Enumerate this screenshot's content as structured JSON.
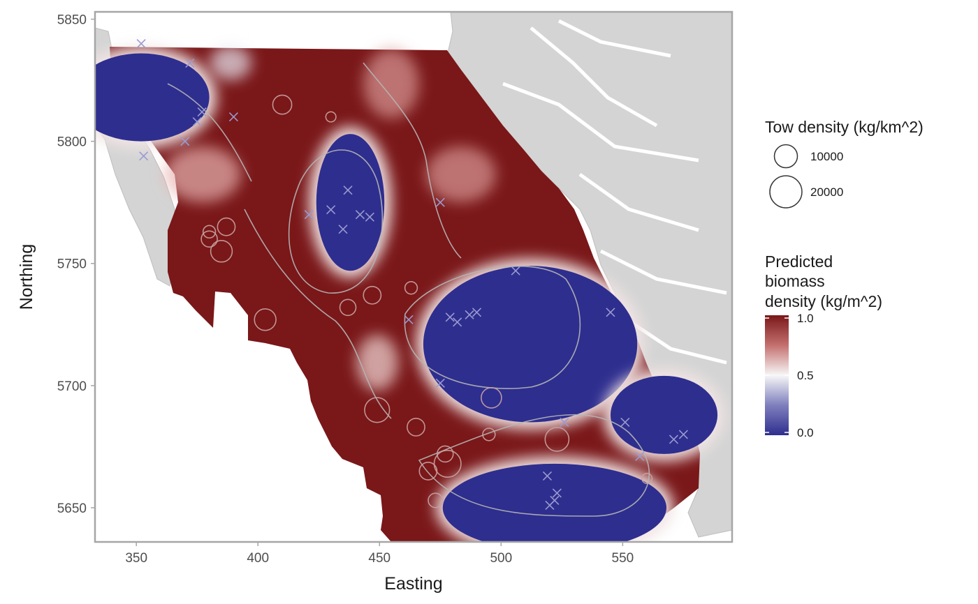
{
  "chart_data": {
    "type": "heatmap",
    "xlabel": "Easting",
    "ylabel": "Northing",
    "xlim": [
      333,
      595
    ],
    "ylim": [
      5636,
      5853
    ],
    "x_ticks": [
      350,
      400,
      450,
      500,
      550
    ],
    "y_ticks": [
      5650,
      5700,
      5750,
      5800,
      5850
    ],
    "grid": false,
    "legend_placement": "right",
    "size_legend": {
      "title": "Tow density (kg/km^2)",
      "entries": [
        10000,
        20000
      ]
    },
    "color_legend": {
      "title_lines": [
        "Predicted",
        "biomass",
        "density (kg/m^2)"
      ],
      "ticks": [
        "1.0",
        "0.5",
        "0.0"
      ],
      "tick_values": [
        1.0,
        0.5,
        0.0
      ],
      "colors": {
        "high": "#7a1719",
        "mid": "#f7f7f7",
        "low": "#2e2e8f"
      }
    },
    "low_density_zones": [
      {
        "x": 352,
        "y": 5818,
        "rx": 28,
        "ry": 18
      },
      {
        "x": 438,
        "y": 5775,
        "rx": 14,
        "ry": 28
      },
      {
        "x": 512,
        "y": 5717,
        "rx": 44,
        "ry": 32
      },
      {
        "x": 522,
        "y": 5650,
        "rx": 46,
        "ry": 18
      },
      {
        "x": 567,
        "y": 5688,
        "rx": 22,
        "ry": 16
      }
    ],
    "tows_positive": [
      {
        "x": 410,
        "y": 5815,
        "d": 7000
      },
      {
        "x": 387,
        "y": 5765,
        "d": 6000
      },
      {
        "x": 385,
        "y": 5755,
        "d": 9000
      },
      {
        "x": 380,
        "y": 5760,
        "d": 5000
      },
      {
        "x": 403,
        "y": 5727,
        "d": 9000
      },
      {
        "x": 437,
        "y": 5732,
        "d": 5000
      },
      {
        "x": 447,
        "y": 5737,
        "d": 6000
      },
      {
        "x": 449,
        "y": 5690,
        "d": 12000
      },
      {
        "x": 465,
        "y": 5683,
        "d": 6000
      },
      {
        "x": 470,
        "y": 5665,
        "d": 6000
      },
      {
        "x": 478,
        "y": 5668,
        "d": 14000
      },
      {
        "x": 477,
        "y": 5672,
        "d": 5000
      },
      {
        "x": 496,
        "y": 5695,
        "d": 8000
      },
      {
        "x": 523,
        "y": 5678,
        "d": 11000
      },
      {
        "x": 473,
        "y": 5653,
        "d": 4000
      },
      {
        "x": 380,
        "y": 5763,
        "d": 3000
      },
      {
        "x": 430,
        "y": 5810,
        "d": 2000
      },
      {
        "x": 463,
        "y": 5740,
        "d": 3000
      },
      {
        "x": 495,
        "y": 5680,
        "d": 3000
      },
      {
        "x": 560,
        "y": 5662,
        "d": 2000
      }
    ],
    "tows_zero": [
      {
        "x": 352,
        "y": 5840
      },
      {
        "x": 372,
        "y": 5832
      },
      {
        "x": 375,
        "y": 5808
      },
      {
        "x": 377,
        "y": 5812
      },
      {
        "x": 370,
        "y": 5800
      },
      {
        "x": 353,
        "y": 5794
      },
      {
        "x": 390,
        "y": 5810
      },
      {
        "x": 437,
        "y": 5780
      },
      {
        "x": 442,
        "y": 5770
      },
      {
        "x": 435,
        "y": 5764
      },
      {
        "x": 430,
        "y": 5772
      },
      {
        "x": 421,
        "y": 5770
      },
      {
        "x": 446,
        "y": 5769
      },
      {
        "x": 475,
        "y": 5775
      },
      {
        "x": 475,
        "y": 5701
      },
      {
        "x": 479,
        "y": 5728
      },
      {
        "x": 482,
        "y": 5726
      },
      {
        "x": 490,
        "y": 5730
      },
      {
        "x": 506,
        "y": 5747
      },
      {
        "x": 462,
        "y": 5727
      },
      {
        "x": 519,
        "y": 5663
      },
      {
        "x": 520,
        "y": 5651
      },
      {
        "x": 522,
        "y": 5653
      },
      {
        "x": 523,
        "y": 5656
      },
      {
        "x": 526,
        "y": 5685
      },
      {
        "x": 551,
        "y": 5685
      },
      {
        "x": 557,
        "y": 5671
      },
      {
        "x": 571,
        "y": 5678
      },
      {
        "x": 575,
        "y": 5680
      },
      {
        "x": 487,
        "y": 5729
      },
      {
        "x": 545,
        "y": 5730
      }
    ]
  }
}
